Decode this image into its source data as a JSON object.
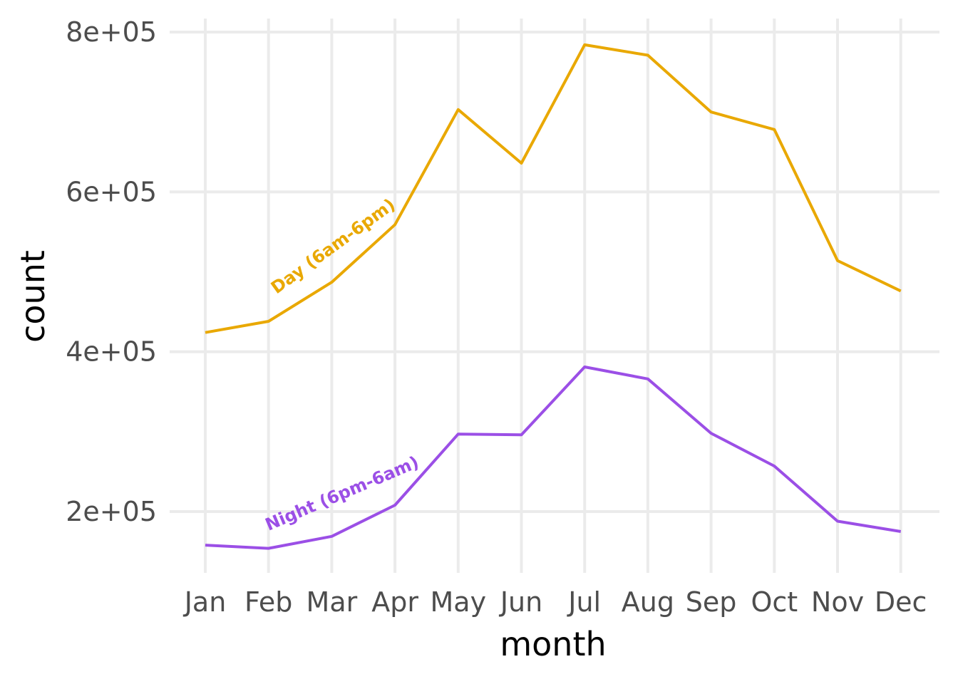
{
  "chart_data": {
    "type": "line",
    "xlabel": "month",
    "ylabel": "count",
    "categories": [
      "Jan",
      "Feb",
      "Mar",
      "Apr",
      "May",
      "Jun",
      "Jul",
      "Aug",
      "Sep",
      "Oct",
      "Nov",
      "Dec"
    ],
    "ylim": [
      125000,
      810000
    ],
    "yticks": [
      200000,
      400000,
      600000,
      800000
    ],
    "ytick_labels": [
      "2e+05",
      "4e+05",
      "6e+05",
      "8e+05"
    ],
    "grid": true,
    "legend": "none",
    "series": [
      {
        "name": "Day (6am-6pm)",
        "color": "#E9A800",
        "values": [
          424000,
          438000,
          487000,
          559000,
          703000,
          636000,
          784000,
          771000,
          700000,
          678000,
          514000,
          476000
        ]
      },
      {
        "name": "Night (6pm-6am)",
        "color": "#9B4FE6",
        "values": [
          158000,
          154000,
          169000,
          208000,
          297000,
          296000,
          381000,
          366000,
          298000,
          257000,
          188000,
          175000
        ]
      }
    ]
  }
}
